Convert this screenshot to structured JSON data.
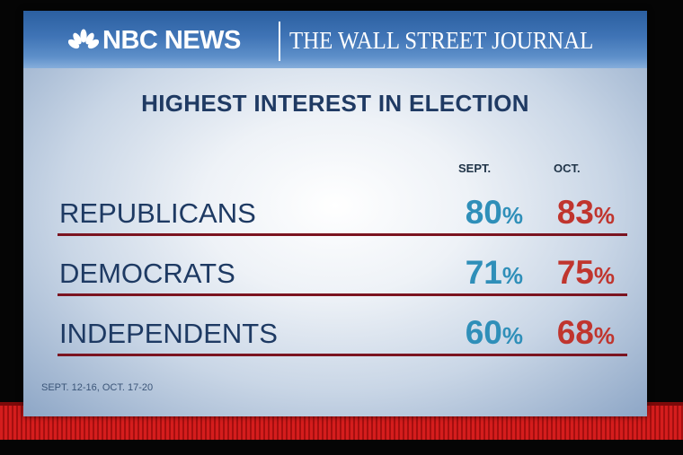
{
  "header": {
    "nbc_label": "NBC NEWS",
    "wsj_label": "THE WALL STREET JOURNAL"
  },
  "colors": {
    "sept": "#2f8fb9",
    "oct": "#c0352e",
    "underline": "#7b1420",
    "header": "#3f74b6"
  },
  "chart_data": {
    "type": "table",
    "title": "HIGHEST INTEREST IN ELECTION",
    "columns": [
      "SEPT.",
      "OCT."
    ],
    "rows": [
      {
        "label": "REPUBLICANS",
        "sept": "80",
        "oct": "83"
      },
      {
        "label": "DEMOCRATS",
        "sept": "71",
        "oct": "75"
      },
      {
        "label": "INDEPENDENTS",
        "sept": "60",
        "oct": "68"
      }
    ],
    "unit": "%",
    "footnote": "SEPT. 12-16, OCT. 17-20"
  }
}
